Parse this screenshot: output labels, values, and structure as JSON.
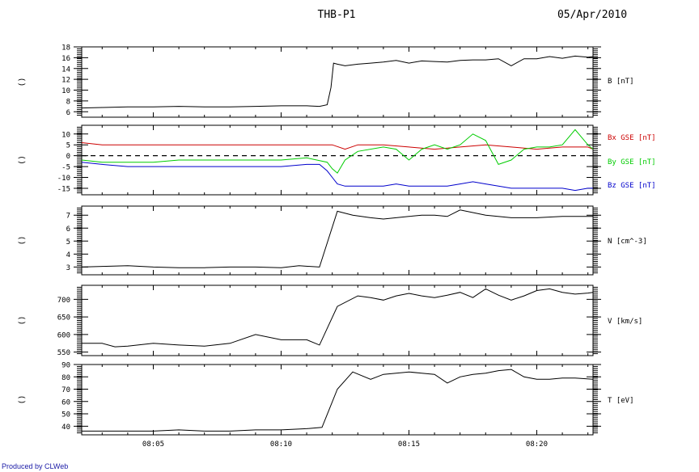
{
  "header": {
    "title": "THB-P1",
    "date": "05/Apr/2010"
  },
  "credit": "Produced by CLWeb",
  "chart_data": [
    {
      "type": "line",
      "panel": "B",
      "ylabel_left": "()",
      "ylim": [
        5,
        18
      ],
      "yticks": [
        6,
        8,
        10,
        12,
        14,
        16,
        18
      ],
      "series": [
        {
          "name": "B [nT]",
          "color": "#000000",
          "x": [
            2.2,
            3,
            4,
            5,
            6,
            7,
            8,
            9,
            10,
            11,
            11.5,
            11.8,
            11.95,
            12.05,
            12.2,
            12.5,
            13,
            13.5,
            14,
            14.5,
            15,
            15.5,
            16,
            16.5,
            17,
            17.5,
            18,
            18.5,
            19,
            19.5,
            20,
            20.5,
            21,
            21.5,
            22,
            22.2
          ],
          "values": [
            6.7,
            6.8,
            6.9,
            6.9,
            7.0,
            6.9,
            6.9,
            7.0,
            7.1,
            7.1,
            7.0,
            7.3,
            10.5,
            15.0,
            14.8,
            14.5,
            14.8,
            15.0,
            15.2,
            15.5,
            15.0,
            15.4,
            15.3,
            15.2,
            15.5,
            15.6,
            15.6,
            15.8,
            14.5,
            15.8,
            15.8,
            16.2,
            15.9,
            16.3,
            16.1,
            16.2
          ]
        }
      ]
    },
    {
      "type": "line",
      "panel": "B components",
      "ylabel_left": "()",
      "ylim": [
        -18,
        14
      ],
      "yticks": [
        -15,
        -10,
        -5,
        0,
        5,
        10
      ],
      "reference_line": 0,
      "series": [
        {
          "name": "Bx GSE [nT]",
          "color": "#cc0000",
          "x": [
            2.2,
            3,
            4,
            5,
            6,
            7,
            8,
            9,
            10,
            11,
            12,
            12.5,
            13,
            14,
            15,
            16,
            17,
            18,
            19,
            20,
            21,
            22,
            22.2
          ],
          "values": [
            6,
            5,
            5,
            5,
            5,
            5,
            5,
            5,
            5,
            5,
            5,
            3,
            5,
            5,
            4,
            3,
            4,
            5,
            4,
            3,
            4,
            4,
            3
          ]
        },
        {
          "name": "By GSE [nT]",
          "color": "#00cc00",
          "x": [
            2.2,
            3,
            4,
            5,
            6,
            7,
            8,
            9,
            10,
            11,
            11.8,
            12,
            12.2,
            12.5,
            13,
            14,
            14.5,
            15,
            15.5,
            16,
            16.5,
            17,
            17.5,
            18,
            18.5,
            19,
            19.5,
            20,
            20.5,
            21,
            21.5,
            22,
            22.2
          ],
          "values": [
            -2,
            -3,
            -3,
            -3,
            -2,
            -2,
            -2,
            -2,
            -2,
            -1,
            -3,
            -6,
            -8,
            -2,
            2,
            4,
            3,
            -2,
            3,
            5,
            3,
            5,
            10,
            7,
            -4,
            -2,
            3,
            4,
            4,
            5,
            12,
            5,
            3
          ]
        },
        {
          "name": "Bz GSE [nT]",
          "color": "#0000cc",
          "x": [
            2.2,
            3,
            4,
            5,
            6,
            7,
            8,
            9,
            10,
            11,
            11.5,
            11.8,
            12,
            12.2,
            12.5,
            13,
            14,
            14.5,
            15,
            15.5,
            16,
            16.5,
            17,
            17.5,
            18,
            18.5,
            19,
            19.5,
            20,
            20.5,
            21,
            21.5,
            22,
            22.2
          ],
          "values": [
            -3,
            -4,
            -5,
            -5,
            -5,
            -5,
            -5,
            -5,
            -5,
            -4,
            -4,
            -7,
            -10,
            -13,
            -14,
            -14,
            -14,
            -13,
            -14,
            -14,
            -14,
            -14,
            -13,
            -12,
            -13,
            -14,
            -15,
            -15,
            -15,
            -15,
            -15,
            -16,
            -15,
            -15
          ]
        }
      ]
    },
    {
      "type": "line",
      "panel": "N",
      "ylabel_left": "()",
      "ylim": [
        2.4,
        7.7
      ],
      "yticks": [
        3,
        4,
        5,
        6,
        7
      ],
      "series": [
        {
          "name": "N [cm^-3]",
          "color": "#000000",
          "x": [
            2.2,
            3,
            4,
            5,
            6,
            7,
            8,
            9,
            10,
            10.7,
            11.5,
            12.2,
            12.8,
            13.5,
            14,
            15,
            15.5,
            16,
            16.5,
            17,
            17.5,
            18,
            19,
            20,
            21,
            22.2
          ],
          "values": [
            3.0,
            3.05,
            3.1,
            3.0,
            2.95,
            2.95,
            3.0,
            3.0,
            2.95,
            3.1,
            3.0,
            7.3,
            7.0,
            6.8,
            6.7,
            6.9,
            7.0,
            7.0,
            6.9,
            7.4,
            7.2,
            7.0,
            6.8,
            6.8,
            6.9,
            6.9
          ]
        }
      ]
    },
    {
      "type": "line",
      "panel": "V",
      "ylabel_left": "()",
      "ylim": [
        540,
        740
      ],
      "yticks": [
        550,
        600,
        650,
        700
      ],
      "series": [
        {
          "name": "V [km/s]",
          "color": "#000000",
          "x": [
            2.2,
            3,
            3.5,
            4,
            5,
            6,
            7,
            8,
            9,
            10,
            11,
            11.5,
            12.2,
            13,
            13.5,
            14,
            14.5,
            15,
            15.5,
            16,
            16.5,
            17,
            17.5,
            18,
            18.5,
            19,
            19.5,
            20,
            20.5,
            21,
            21.5,
            22,
            22.2
          ],
          "values": [
            575,
            575,
            565,
            567,
            575,
            570,
            567,
            575,
            600,
            585,
            585,
            570,
            680,
            710,
            705,
            698,
            710,
            717,
            710,
            705,
            712,
            720,
            705,
            730,
            712,
            698,
            710,
            725,
            730,
            720,
            715,
            718,
            720
          ]
        }
      ]
    },
    {
      "type": "line",
      "panel": "T",
      "ylabel_left": "()",
      "ylim": [
        33,
        90
      ],
      "yticks": [
        40,
        50,
        60,
        70,
        80,
        90
      ],
      "xticks": [
        "08:05",
        "08:10",
        "08:15",
        "08:20"
      ],
      "series": [
        {
          "name": "T [eV]",
          "color": "#000000",
          "x": [
            2.2,
            3,
            4,
            5,
            6,
            7,
            8,
            9,
            10,
            11,
            11.6,
            12.2,
            12.8,
            13.5,
            14,
            14.5,
            15,
            15.5,
            16,
            16.5,
            17,
            17.5,
            18,
            18.5,
            19,
            19.5,
            20,
            20.5,
            21,
            21.5,
            22.2
          ],
          "values": [
            36,
            36,
            36,
            36,
            37,
            36,
            36,
            37,
            37,
            38,
            39,
            70,
            84,
            78,
            82,
            83,
            84,
            83,
            82,
            75,
            80,
            82,
            83,
            85,
            86,
            80,
            78,
            78,
            79,
            79,
            78
          ]
        }
      ]
    }
  ],
  "x_axis": {
    "range_minutes": [
      2.2,
      22.2
    ],
    "tick_labels": [
      "08:05",
      "08:10",
      "08:15",
      "08:20"
    ],
    "tick_positions": [
      5,
      10,
      15,
      20
    ]
  }
}
